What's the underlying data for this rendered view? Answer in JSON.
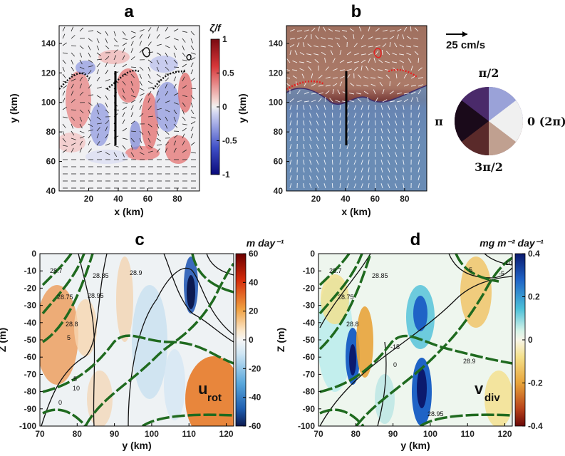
{
  "panels": {
    "a": {
      "label": "a",
      "colorbar_title": "ζ/f",
      "colorbar_ticks": [
        "1",
        "0.5",
        "0",
        "-0.5",
        "-1"
      ],
      "colorbar_range": [
        -1,
        1
      ]
    },
    "b": {
      "label": "b",
      "scale_label": "25 cm/s",
      "wheel_top": "π/2",
      "wheel_left": "π",
      "wheel_right": "0 (2π)",
      "wheel_bottom": "3π/2"
    },
    "c": {
      "label": "c",
      "colorbar_title": "m day⁻¹",
      "colorbar_ticks": [
        "60",
        "40",
        "20",
        "0",
        "-20",
        "-40",
        "-60"
      ],
      "colorbar_range": [
        -60,
        60
      ],
      "annotation_main": "u",
      "annotation_sub": "rot"
    },
    "d": {
      "label": "d",
      "colorbar_title": "mg m⁻² day⁻¹",
      "colorbar_ticks": [
        "0.4",
        "0.2",
        "0",
        "-0.2",
        "-0.4"
      ],
      "colorbar_range": [
        -0.4,
        0.4
      ],
      "annotation_main": "v",
      "annotation_sub": "div"
    }
  },
  "chart_data": [
    {
      "panel": "a",
      "type": "heatmap",
      "title": "a",
      "xlabel": "x (km)",
      "ylabel": "y (km)",
      "xlim": [
        0,
        95
      ],
      "ylim": [
        40,
        152
      ],
      "xticks": [
        20,
        40,
        60,
        80
      ],
      "yticks": [
        40,
        60,
        80,
        100,
        120,
        140
      ],
      "colorbar": {
        "label": "ζ/f",
        "range": [
          -1,
          1
        ],
        "ticks": [
          1,
          0.5,
          0,
          -0.5,
          -1
        ]
      },
      "transect": {
        "x": 40,
        "y": [
          70,
          120
        ]
      }
    },
    {
      "panel": "b",
      "type": "heatmap",
      "title": "b",
      "xlabel": "x (km)",
      "ylabel": "y (km)",
      "xlim": [
        0,
        95
      ],
      "ylim": [
        40,
        152
      ],
      "xticks": [
        20,
        40,
        60,
        80
      ],
      "yticks": [
        40,
        60,
        80,
        100,
        120,
        140
      ],
      "vector_scale": "25 cm/s",
      "phase_wheel": [
        "π/2",
        "π",
        "0 (2π)",
        "3π/2"
      ],
      "transect": {
        "x": 40,
        "y": [
          70,
          120
        ]
      }
    },
    {
      "panel": "c",
      "type": "heatmap",
      "title": "c",
      "xlabel": "y (km)",
      "ylabel": "Z (m)",
      "xlim": [
        70,
        122
      ],
      "ylim": [
        -100,
        0
      ],
      "xticks": [
        70,
        80,
        90,
        100,
        110,
        120
      ],
      "yticks": [
        0,
        -10,
        -20,
        -30,
        -40,
        -50,
        -60,
        -70,
        -80,
        -90,
        -100
      ],
      "colorbar": {
        "label": "m day⁻¹",
        "range": [
          -60,
          60
        ],
        "ticks": [
          60,
          40,
          20,
          0,
          -20,
          -40,
          -60
        ]
      },
      "contour_labels": [
        "28.7",
        "28.75",
        "28.8",
        "28.85",
        "28.9",
        "28.95",
        "5",
        "10",
        "0",
        "-5"
      ],
      "annotation": "u rot"
    },
    {
      "panel": "d",
      "type": "heatmap",
      "title": "d",
      "xlabel": "y (km)",
      "ylabel": "Z (m)",
      "xlim": [
        70,
        122
      ],
      "ylim": [
        -100,
        0
      ],
      "xticks": [
        70,
        80,
        90,
        100,
        110,
        120
      ],
      "yticks": [
        0,
        -10,
        -20,
        -30,
        -40,
        -50,
        -60,
        -70,
        -80,
        -90,
        -100
      ],
      "colorbar": {
        "label": "mg m⁻² day⁻¹",
        "range": [
          -0.4,
          0.4
        ],
        "ticks": [
          0.4,
          0.2,
          0,
          -0.2,
          -0.4
        ]
      },
      "contour_labels": [
        "28.7",
        "28.75",
        "28.8",
        "28.85",
        "28.9",
        "28.95",
        "5",
        "-5",
        "-10",
        "-15",
        "0"
      ],
      "annotation": "v div"
    }
  ],
  "axes": {
    "xlabel_top": "x (km)",
    "ylabel_top": "y (km)",
    "xlabel_bottom": "y (km)",
    "ylabel_bottom": "Z (m)"
  }
}
